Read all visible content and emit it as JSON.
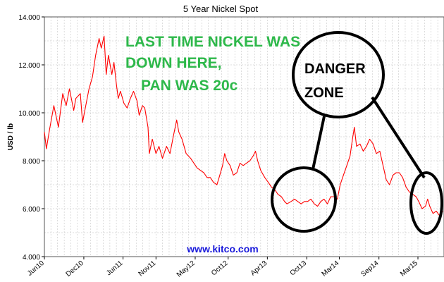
{
  "chart_data": {
    "type": "line",
    "title": "5 Year Nickel Spot",
    "ylabel": "USD / lb",
    "ylim": [
      4.0,
      14.0
    ],
    "yticks": [
      "4.000",
      "6.000",
      "8.000",
      "10.000",
      "12.000",
      "14.000"
    ],
    "ytick_values": [
      4,
      6,
      8,
      10,
      12,
      14
    ],
    "xlim": [
      "2010-06-01",
      "2015-06-30"
    ],
    "xticks": [
      {
        "label": "Jun10",
        "date": "2010-06-01"
      },
      {
        "label": "Dec10",
        "date": "2010-12-01"
      },
      {
        "label": "Jun11",
        "date": "2011-06-01"
      },
      {
        "label": "Nov11",
        "date": "2011-11-01"
      },
      {
        "label": "May12",
        "date": "2012-05-01"
      },
      {
        "label": "Oct12",
        "date": "2012-10-01"
      },
      {
        "label": "Apr13",
        "date": "2013-04-01"
      },
      {
        "label": "Oct13",
        "date": "2013-10-01"
      },
      {
        "label": "Mar14",
        "date": "2014-03-01"
      },
      {
        "label": "Sep14",
        "date": "2014-09-01"
      },
      {
        "label": "Mar15",
        "date": "2015-03-01"
      }
    ],
    "grid": true,
    "series": [
      {
        "color": "#ff0000",
        "points": [
          [
            "2010-06-01",
            9.2
          ],
          [
            "2010-06-10",
            8.5
          ],
          [
            "2010-06-25",
            9.3
          ],
          [
            "2010-07-15",
            10.3
          ],
          [
            "2010-08-05",
            9.4
          ],
          [
            "2010-08-25",
            10.8
          ],
          [
            "2010-09-10",
            10.3
          ],
          [
            "2010-09-25",
            11.0
          ],
          [
            "2010-10-15",
            10.1
          ],
          [
            "2010-10-25",
            10.6
          ],
          [
            "2010-11-15",
            10.8
          ],
          [
            "2010-11-25",
            9.6
          ],
          [
            "2010-12-10",
            10.3
          ],
          [
            "2010-12-25",
            11.0
          ],
          [
            "2011-01-10",
            11.5
          ],
          [
            "2011-01-25",
            12.4
          ],
          [
            "2011-02-10",
            13.1
          ],
          [
            "2011-02-20",
            12.7
          ],
          [
            "2011-03-05",
            13.2
          ],
          [
            "2011-03-15",
            11.6
          ],
          [
            "2011-03-25",
            12.4
          ],
          [
            "2011-04-10",
            11.6
          ],
          [
            "2011-04-20",
            12.1
          ],
          [
            "2011-05-01",
            11.2
          ],
          [
            "2011-05-10",
            10.6
          ],
          [
            "2011-05-20",
            10.9
          ],
          [
            "2011-06-05",
            10.4
          ],
          [
            "2011-06-20",
            10.2
          ],
          [
            "2011-07-05",
            10.6
          ],
          [
            "2011-07-20",
            10.9
          ],
          [
            "2011-08-05",
            10.5
          ],
          [
            "2011-08-15",
            9.9
          ],
          [
            "2011-08-30",
            10.3
          ],
          [
            "2011-09-10",
            10.2
          ],
          [
            "2011-09-25",
            9.4
          ],
          [
            "2011-10-01",
            8.3
          ],
          [
            "2011-10-15",
            8.9
          ],
          [
            "2011-11-01",
            8.3
          ],
          [
            "2011-11-15",
            8.6
          ],
          [
            "2011-12-01",
            8.1
          ],
          [
            "2011-12-20",
            8.6
          ],
          [
            "2012-01-05",
            8.3
          ],
          [
            "2012-01-20",
            9.0
          ],
          [
            "2012-02-05",
            9.7
          ],
          [
            "2012-02-15",
            9.2
          ],
          [
            "2012-03-01",
            8.9
          ],
          [
            "2012-03-20",
            8.3
          ],
          [
            "2012-04-10",
            8.1
          ],
          [
            "2012-04-25",
            7.9
          ],
          [
            "2012-05-10",
            7.7
          ],
          [
            "2012-05-25",
            7.6
          ],
          [
            "2012-06-10",
            7.5
          ],
          [
            "2012-06-25",
            7.3
          ],
          [
            "2012-07-10",
            7.3
          ],
          [
            "2012-07-25",
            7.1
          ],
          [
            "2012-08-10",
            7.0
          ],
          [
            "2012-08-20",
            7.3
          ],
          [
            "2012-09-05",
            7.8
          ],
          [
            "2012-09-15",
            8.3
          ],
          [
            "2012-09-25",
            8.0
          ],
          [
            "2012-10-10",
            7.8
          ],
          [
            "2012-10-25",
            7.4
          ],
          [
            "2012-11-10",
            7.5
          ],
          [
            "2012-11-25",
            7.9
          ],
          [
            "2012-12-10",
            7.8
          ],
          [
            "2012-12-25",
            7.9
          ],
          [
            "2013-01-10",
            8.0
          ],
          [
            "2013-01-25",
            8.2
          ],
          [
            "2013-02-05",
            8.4
          ],
          [
            "2013-02-15",
            8.0
          ],
          [
            "2013-03-01",
            7.6
          ],
          [
            "2013-03-20",
            7.3
          ],
          [
            "2013-04-05",
            7.1
          ],
          [
            "2013-04-20",
            6.9
          ],
          [
            "2013-05-05",
            6.8
          ],
          [
            "2013-05-20",
            6.6
          ],
          [
            "2013-06-05",
            6.5
          ],
          [
            "2013-06-20",
            6.3
          ],
          [
            "2013-07-01",
            6.2
          ],
          [
            "2013-07-20",
            6.3
          ],
          [
            "2013-08-05",
            6.4
          ],
          [
            "2013-08-20",
            6.3
          ],
          [
            "2013-09-05",
            6.2
          ],
          [
            "2013-09-20",
            6.3
          ],
          [
            "2013-10-05",
            6.3
          ],
          [
            "2013-10-20",
            6.4
          ],
          [
            "2013-11-05",
            6.2
          ],
          [
            "2013-11-20",
            6.1
          ],
          [
            "2013-12-05",
            6.3
          ],
          [
            "2013-12-20",
            6.4
          ],
          [
            "2014-01-05",
            6.2
          ],
          [
            "2014-01-20",
            6.5
          ],
          [
            "2014-02-05",
            6.5
          ],
          [
            "2014-02-20",
            6.4
          ],
          [
            "2014-03-05",
            7.0
          ],
          [
            "2014-03-20",
            7.4
          ],
          [
            "2014-04-05",
            7.8
          ],
          [
            "2014-04-20",
            8.2
          ],
          [
            "2014-05-01",
            8.9
          ],
          [
            "2014-05-10",
            9.4
          ],
          [
            "2014-05-20",
            8.6
          ],
          [
            "2014-06-05",
            8.7
          ],
          [
            "2014-06-20",
            8.4
          ],
          [
            "2014-07-05",
            8.6
          ],
          [
            "2014-07-20",
            8.9
          ],
          [
            "2014-08-05",
            8.7
          ],
          [
            "2014-08-20",
            8.3
          ],
          [
            "2014-09-05",
            8.4
          ],
          [
            "2014-09-20",
            7.8
          ],
          [
            "2014-10-05",
            7.2
          ],
          [
            "2014-10-20",
            7.0
          ],
          [
            "2014-11-05",
            7.4
          ],
          [
            "2014-11-20",
            7.5
          ],
          [
            "2014-12-05",
            7.5
          ],
          [
            "2014-12-20",
            7.3
          ],
          [
            "2015-01-05",
            6.9
          ],
          [
            "2015-01-20",
            6.7
          ],
          [
            "2015-02-05",
            6.6
          ],
          [
            "2015-02-20",
            6.5
          ],
          [
            "2015-03-05",
            6.3
          ],
          [
            "2015-03-20",
            6.0
          ],
          [
            "2015-04-05",
            6.1
          ],
          [
            "2015-04-15",
            6.4
          ],
          [
            "2015-04-25",
            6.1
          ],
          [
            "2015-05-10",
            5.8
          ],
          [
            "2015-05-25",
            5.9
          ],
          [
            "2015-06-10",
            5.7
          ],
          [
            "2015-06-25",
            5.9
          ]
        ]
      }
    ],
    "annotations": {
      "headline_lines": [
        "LAST TIME NICKEL WAS",
        "DOWN HERE,",
        "PAN WAS 20c"
      ],
      "callout_lines": [
        "DANGER",
        "ZONE"
      ],
      "source": "www.kitco.com"
    }
  },
  "colors": {
    "line": "#ff0000",
    "headline": "#2db84a",
    "source": "#1a1adb",
    "grid": "#bbbbbb"
  }
}
